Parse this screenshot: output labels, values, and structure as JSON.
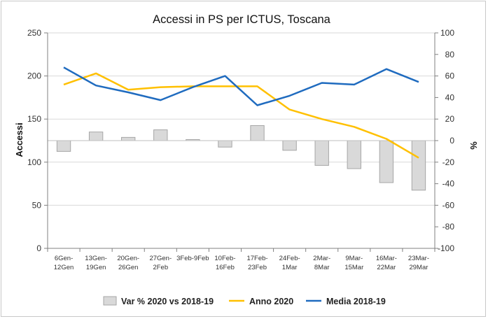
{
  "chart_data": {
    "type": "bar",
    "title": "Accessi in PS per ICTUS, Toscana",
    "ylabel": "Accessi",
    "y2label": "%",
    "ylim": [
      0,
      250
    ],
    "y2lim": [
      -100,
      100
    ],
    "yticks": [
      "0",
      "50",
      "100",
      "150",
      "200",
      "250"
    ],
    "y2ticks": [
      "-100",
      "-80",
      "-60",
      "-40",
      "-20",
      "0",
      "20",
      "40",
      "60",
      "80",
      "100"
    ],
    "categories": [
      [
        "6Gen-",
        "12Gen"
      ],
      [
        "13Gen-",
        "19Gen"
      ],
      [
        "20Gen-",
        "26Gen"
      ],
      [
        "27Gen-",
        "2Feb"
      ],
      [
        "3Feb-9Feb"
      ],
      [
        "10Feb-",
        "16Feb"
      ],
      [
        "17Feb-",
        "23Feb"
      ],
      [
        "24Feb-",
        "1Mar"
      ],
      [
        "2Mar-",
        "8Mar"
      ],
      [
        "9Mar-",
        "15Mar"
      ],
      [
        "16Mar-",
        "22Mar"
      ],
      [
        "23Mar-",
        "29Mar"
      ]
    ],
    "series": [
      {
        "name": "Var % 2020 vs 2018-19",
        "type": "bar",
        "axis": "right",
        "color": "#d9d9d9",
        "values": [
          -10,
          8,
          3,
          10,
          1,
          -6,
          14,
          -9,
          -23,
          -26,
          -39,
          -46
        ]
      },
      {
        "name": "Anno 2020",
        "type": "line",
        "axis": "left",
        "color": "#ffc000",
        "values": [
          190,
          203,
          184,
          187,
          188,
          188,
          188,
          161,
          150,
          141,
          127,
          105
        ]
      },
      {
        "name": "Media 2018-19",
        "type": "line",
        "axis": "left",
        "color": "#1f6bbf",
        "values": [
          210,
          189,
          181,
          172,
          187,
          200,
          166,
          177,
          192,
          190,
          208,
          193
        ]
      }
    ],
    "legend_position": "bottom",
    "grid": true
  }
}
